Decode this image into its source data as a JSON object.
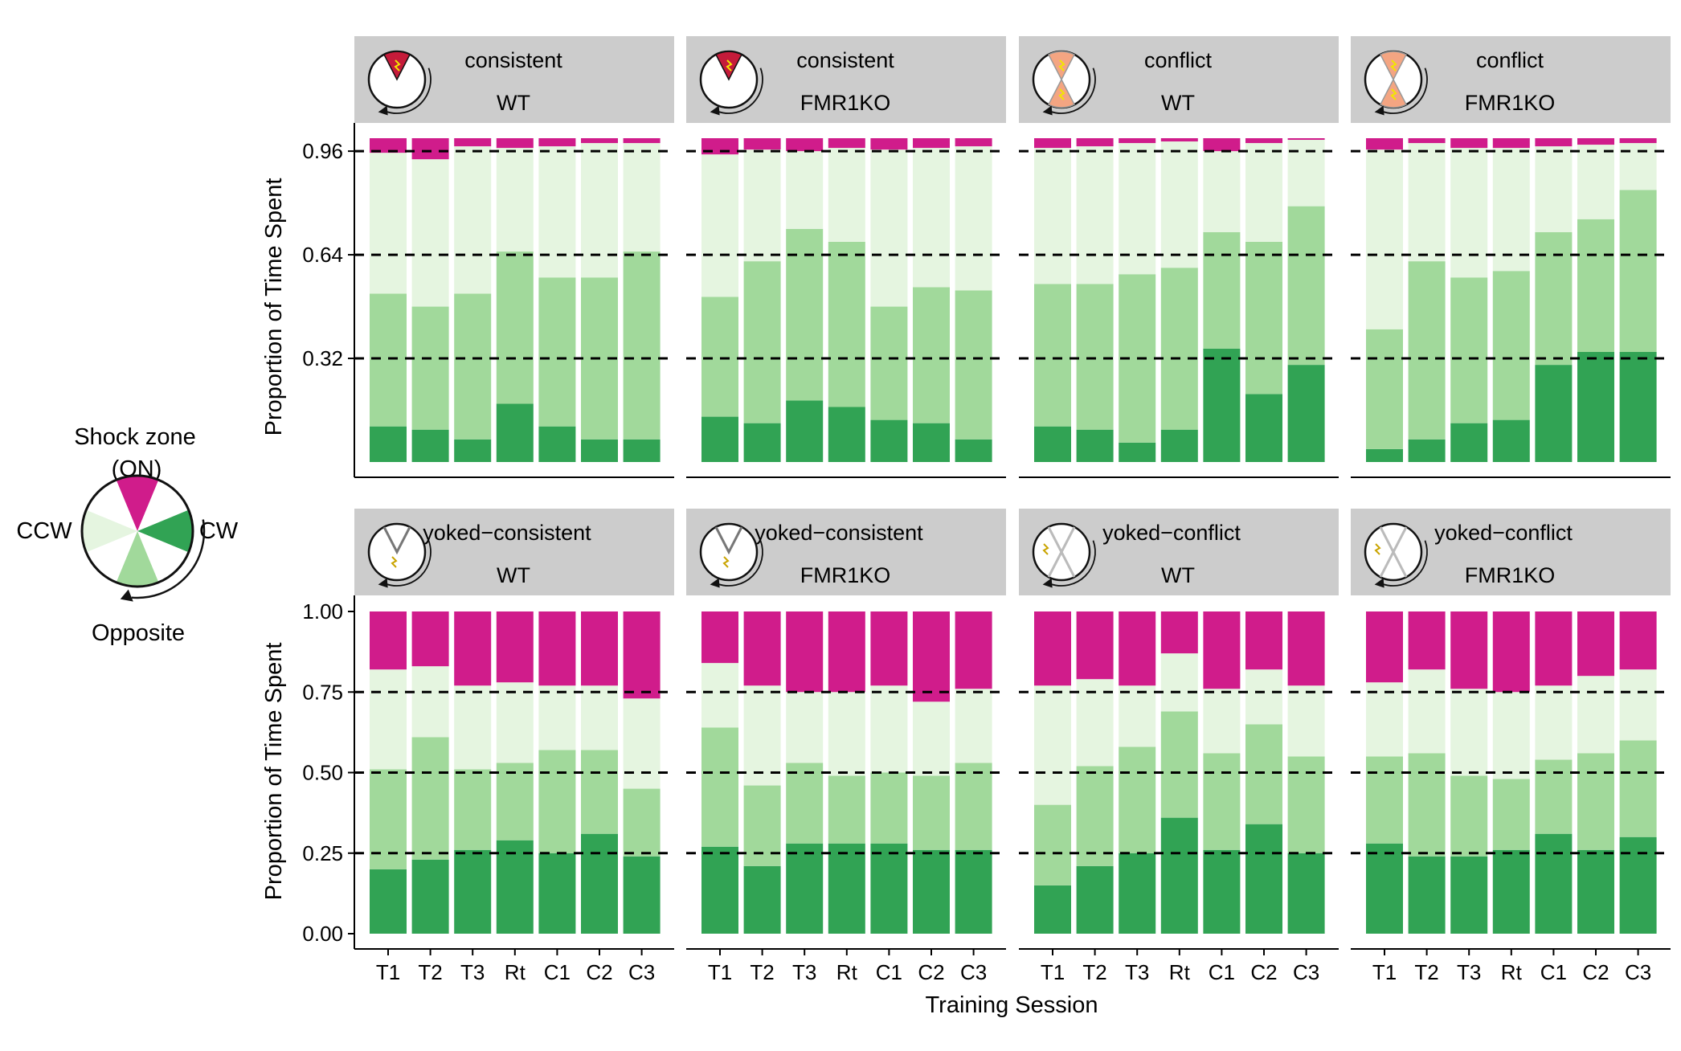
{
  "chart_data": {
    "type": "bar",
    "stacked": true,
    "colors": {
      "shock": "#d01c8b",
      "ccw": "#e5f5e0",
      "opposite": "#a1d99b",
      "cw": "#31a354",
      "strip_bg": "#cccccc",
      "gridline": "#000000"
    },
    "xlabel": "Training Session",
    "ylabel": "Proportion of Time Spent",
    "categories": [
      "T1",
      "T2",
      "T3",
      "Rt",
      "C1",
      "C2",
      "C3"
    ],
    "stack_order_bottom_to_top": [
      "cw",
      "opposite",
      "ccw",
      "shock"
    ],
    "legend": {
      "title_line1": "Shock zone",
      "title_line2": "(ON)",
      "ccw": "CCW",
      "cw": "CW",
      "opposite": "Opposite",
      "placement": "left"
    },
    "rows": [
      {
        "yticks": [
          {
            "value": 0.32,
            "label": "0.32"
          },
          {
            "value": 0.64,
            "label": "0.64"
          },
          {
            "value": 0.96,
            "label": "0.96"
          }
        ],
        "dashed_lines": [
          0.32,
          0.64,
          0.96
        ],
        "ylim": [
          0,
          1
        ],
        "panels": [
          {
            "label_top": "consistent",
            "label_bottom": "WT",
            "icon": "consistent-shock-icon",
            "cw": [
              0.11,
              0.1,
              0.07,
              0.18,
              0.11,
              0.07,
              0.07
            ],
            "opposite": [
              0.52,
              0.48,
              0.52,
              0.65,
              0.57,
              0.57,
              0.65
            ],
            "ccw": [
              0.955,
              0.935,
              0.975,
              0.97,
              0.975,
              0.985,
              0.985
            ]
          },
          {
            "label_top": "consistent",
            "label_bottom": "FMR1KO",
            "icon": "consistent-shock-icon",
            "cw": [
              0.14,
              0.12,
              0.19,
              0.17,
              0.13,
              0.12,
              0.07
            ],
            "opposite": [
              0.51,
              0.62,
              0.72,
              0.68,
              0.48,
              0.54,
              0.53
            ],
            "ccw": [
              0.95,
              0.965,
              0.96,
              0.97,
              0.965,
              0.97,
              0.975
            ]
          },
          {
            "label_top": "conflict",
            "label_bottom": "WT",
            "icon": "conflict-shock-icon",
            "cw": [
              0.11,
              0.1,
              0.06,
              0.1,
              0.35,
              0.21,
              0.3
            ],
            "opposite": [
              0.55,
              0.55,
              0.58,
              0.6,
              0.71,
              0.68,
              0.79
            ],
            "ccw": [
              0.97,
              0.975,
              0.985,
              0.99,
              0.96,
              0.985,
              0.995
            ]
          },
          {
            "label_top": "conflict",
            "label_bottom": "FMR1KO",
            "icon": "conflict-shock-icon",
            "cw": [
              0.04,
              0.07,
              0.12,
              0.13,
              0.3,
              0.34,
              0.34
            ],
            "opposite": [
              0.41,
              0.62,
              0.57,
              0.59,
              0.71,
              0.75,
              0.84
            ],
            "ccw": [
              0.965,
              0.985,
              0.97,
              0.97,
              0.975,
              0.98,
              0.985
            ]
          }
        ]
      },
      {
        "yticks": [
          {
            "value": 0,
            "label": "0.00"
          },
          {
            "value": 0.25,
            "label": "0.25"
          },
          {
            "value": 0.5,
            "label": "0.50"
          },
          {
            "value": 0.75,
            "label": "0.75"
          },
          {
            "value": 1,
            "label": "1.00"
          }
        ],
        "dashed_lines": [
          0.25,
          0.5,
          0.75
        ],
        "ylim": [
          -0.05,
          1.05
        ],
        "panels": [
          {
            "label_top": "yoked−consistent",
            "label_bottom": "WT",
            "icon": "yoked-consistent-icon",
            "cw": [
              0.2,
              0.23,
              0.26,
              0.29,
              0.25,
              0.31,
              0.24
            ],
            "opposite": [
              0.51,
              0.61,
              0.51,
              0.53,
              0.57,
              0.57,
              0.45
            ],
            "ccw": [
              0.82,
              0.83,
              0.77,
              0.78,
              0.77,
              0.77,
              0.73
            ]
          },
          {
            "label_top": "yoked−consistent",
            "label_bottom": "FMR1KO",
            "icon": "yoked-consistent-icon",
            "cw": [
              0.27,
              0.21,
              0.28,
              0.28,
              0.28,
              0.26,
              0.26
            ],
            "opposite": [
              0.64,
              0.46,
              0.53,
              0.49,
              0.5,
              0.49,
              0.53
            ],
            "ccw": [
              0.84,
              0.77,
              0.75,
              0.75,
              0.77,
              0.72,
              0.76
            ]
          },
          {
            "label_top": "yoked−conflict",
            "label_bottom": "WT",
            "icon": "yoked-conflict-icon",
            "cw": [
              0.15,
              0.21,
              0.25,
              0.36,
              0.26,
              0.34,
              0.25
            ],
            "opposite": [
              0.4,
              0.52,
              0.58,
              0.69,
              0.56,
              0.65,
              0.55
            ],
            "ccw": [
              0.77,
              0.79,
              0.77,
              0.87,
              0.76,
              0.82,
              0.77
            ]
          },
          {
            "label_top": "yoked−conflict",
            "label_bottom": "FMR1KO",
            "icon": "yoked-conflict-icon",
            "cw": [
              0.28,
              0.24,
              0.24,
              0.26,
              0.31,
              0.26,
              0.3
            ],
            "opposite": [
              0.55,
              0.56,
              0.49,
              0.48,
              0.54,
              0.56,
              0.6
            ],
            "ccw": [
              0.78,
              0.82,
              0.76,
              0.75,
              0.77,
              0.8,
              0.82
            ]
          }
        ]
      }
    ]
  }
}
